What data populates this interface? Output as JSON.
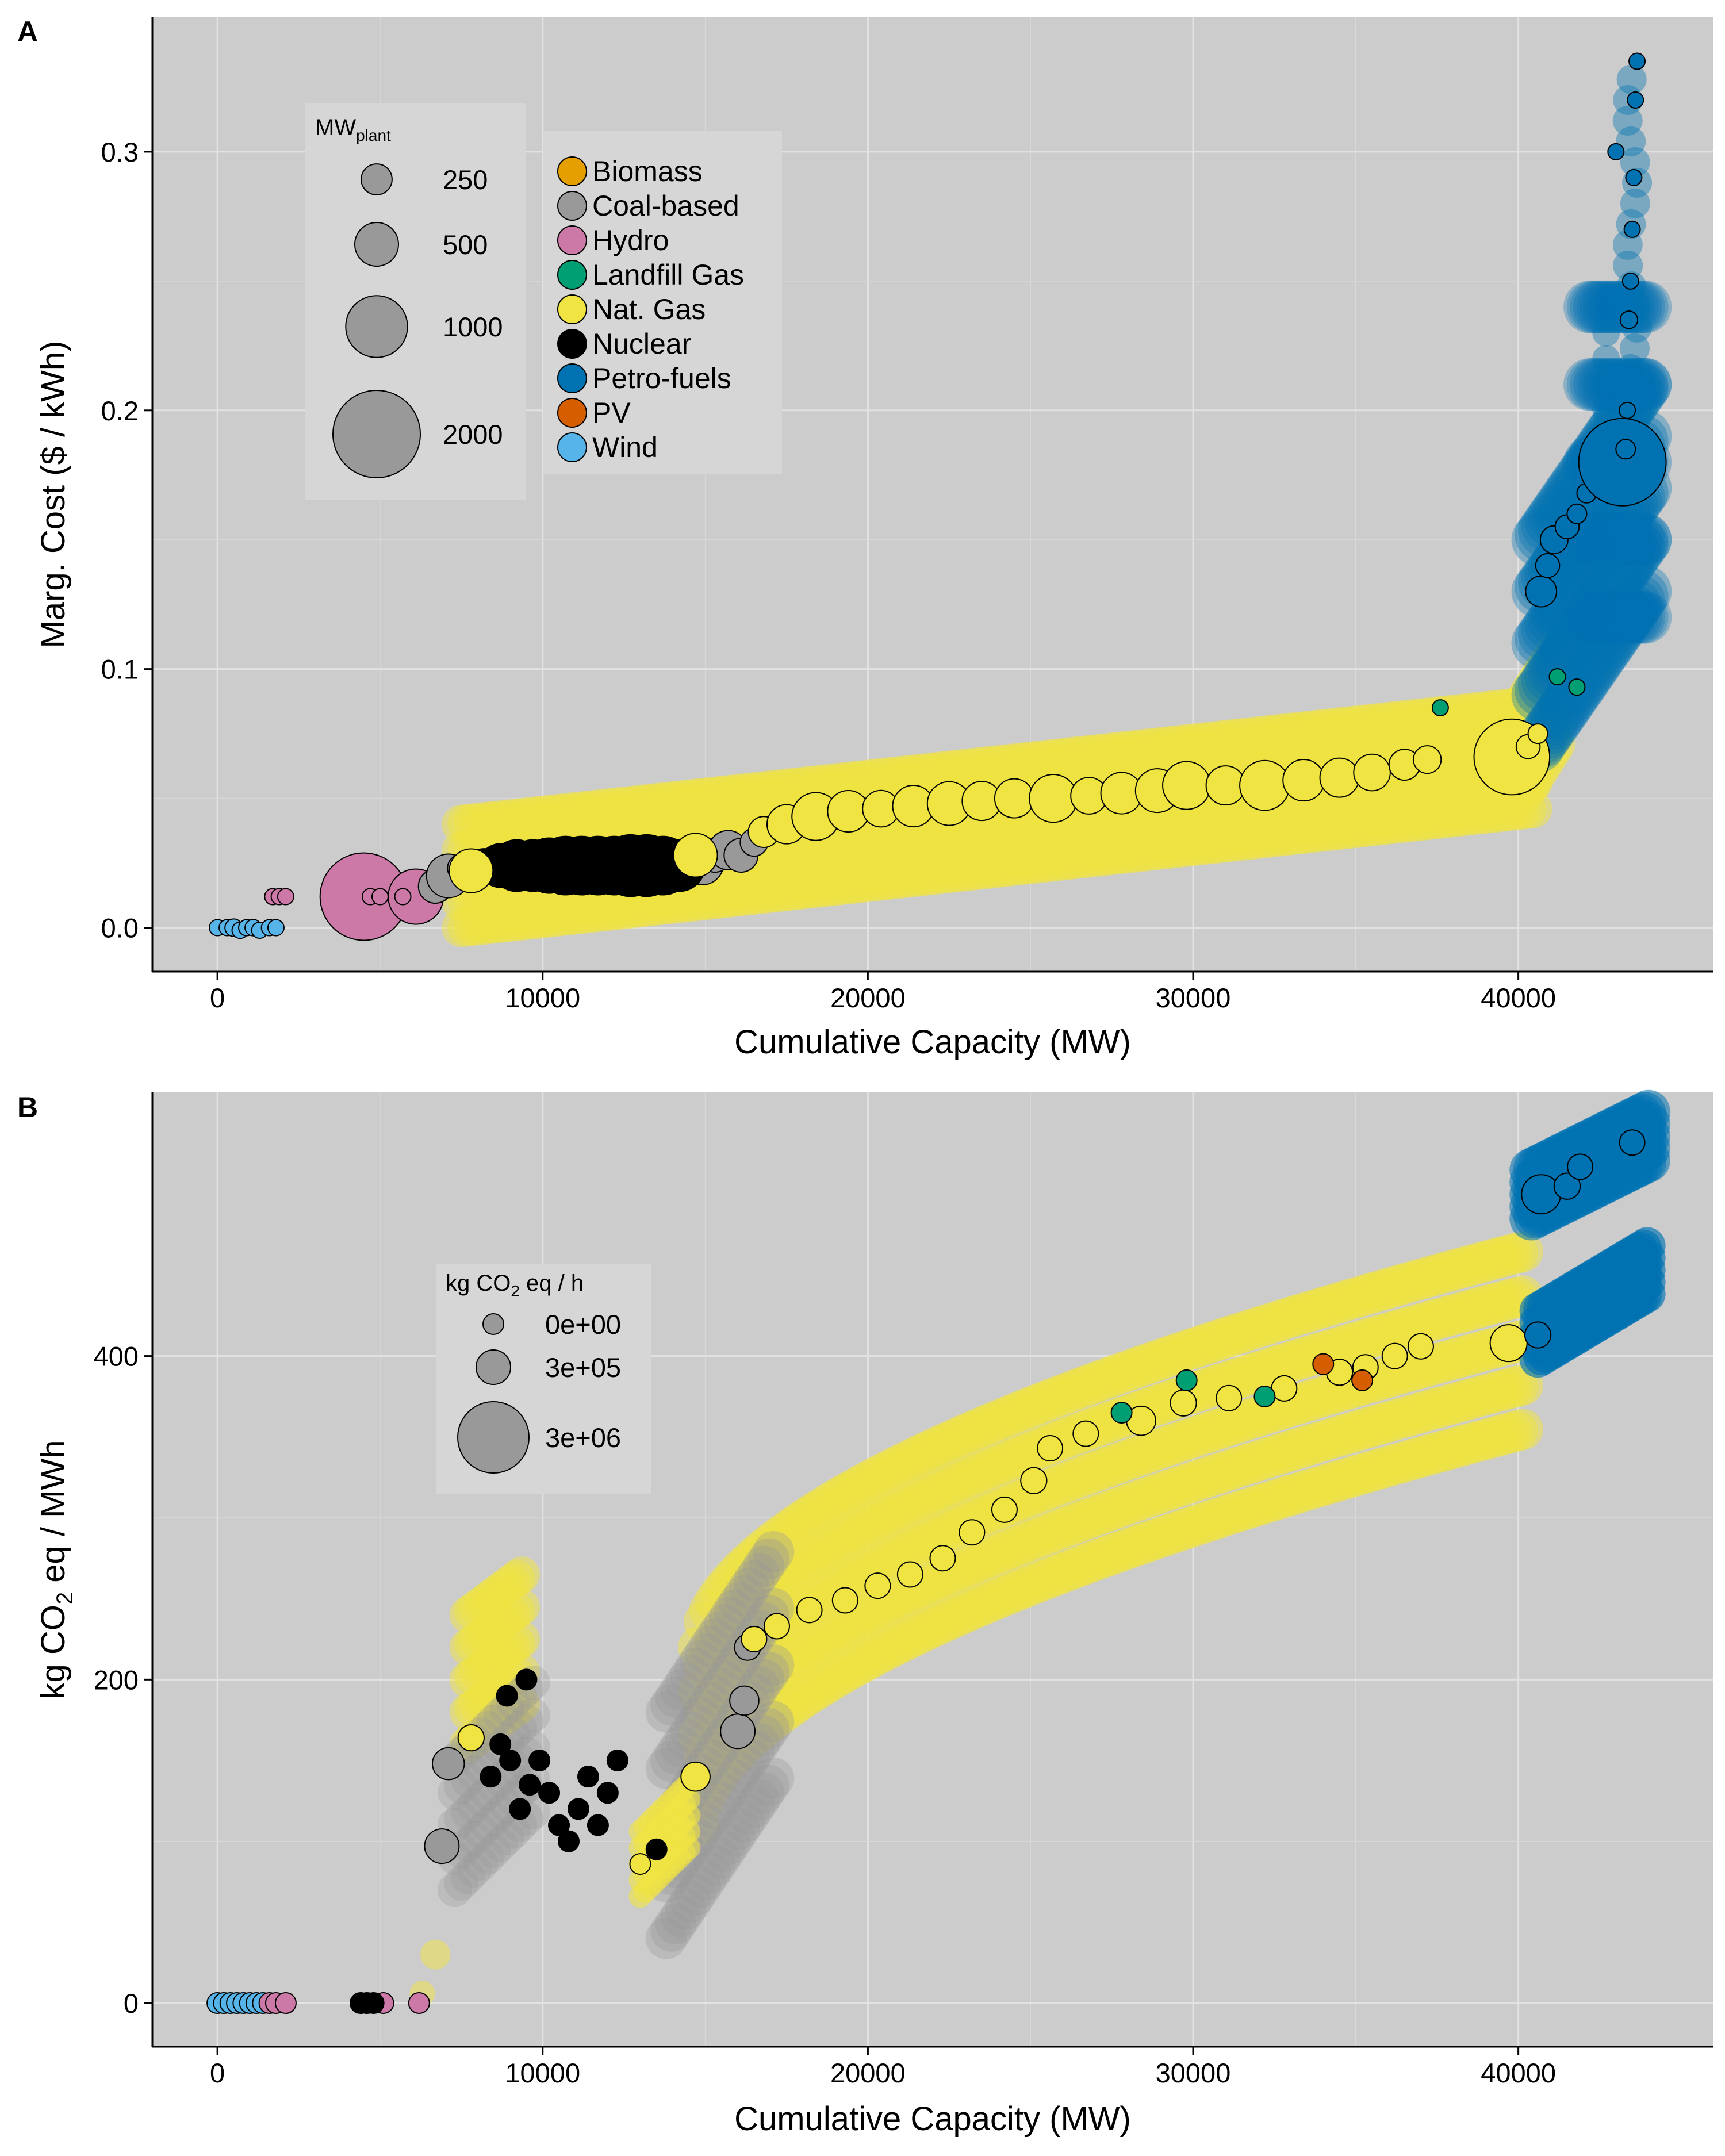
{
  "panels": [
    {
      "tag": "A"
    },
    {
      "tag": "B"
    }
  ],
  "colors": {
    "panel_bg": "#cccccc",
    "grid": "#e2e2e2",
    "Biomass": "#E69F00",
    "Coal-based": "#999999",
    "Hydro": "#CC79A7",
    "Landfill Gas": "#009E73",
    "Nat. Gas": "#F0E442",
    "Nuclear": "#000000",
    "Petro-fuels": "#0072B2",
    "PV": "#D55E00",
    "Wind": "#56B4E9"
  },
  "chart_data": [
    {
      "type": "scatter",
      "panel": "A",
      "xlabel": "Cumulative Capacity (MW)",
      "ylabel": "Marg. Cost ($ / kWh)",
      "xlim": [
        -2000,
        46000
      ],
      "ylim": [
        -0.017,
        0.352
      ],
      "x_ticks": [
        0,
        10000,
        20000,
        30000,
        40000
      ],
      "x_tick_labels": [
        "0",
        "10000",
        "20000",
        "30000",
        "40000"
      ],
      "y_ticks": [
        0.0,
        0.1,
        0.2,
        0.3
      ],
      "y_tick_labels": [
        "0.0",
        "0.1",
        "0.2",
        "0.3"
      ],
      "grid": true,
      "legend_fuel": {
        "placement": "upper-left",
        "entries": [
          "Biomass",
          "Coal-based",
          "Hydro",
          "Landfill Gas",
          "Nat. Gas",
          "Nuclear",
          "Petro-fuels",
          "PV",
          "Wind"
        ]
      },
      "legend_size": {
        "placement": "upper-left",
        "title_main": "MW",
        "title_sub": "plant",
        "entries": [
          {
            "label": "250",
            "value": 250
          },
          {
            "label": "500",
            "value": 500
          },
          {
            "label": "1000",
            "value": 1000
          },
          {
            "label": "2000",
            "value": 2000
          }
        ]
      },
      "series": [
        {
          "name": "Wind",
          "points": [
            [
              0,
              0.0,
              40
            ],
            [
              300,
              0.0,
              60
            ],
            [
              500,
              0.0,
              80
            ],
            [
              700,
              -0.001,
              70
            ],
            [
              900,
              0.0,
              60
            ],
            [
              1100,
              0.0,
              70
            ],
            [
              1300,
              -0.001,
              50
            ],
            [
              1600,
              0.0,
              50
            ],
            [
              1800,
              0.0,
              60
            ]
          ]
        },
        {
          "name": "Hydro",
          "points": [
            [
              1700,
              0.012,
              30
            ],
            [
              1900,
              0.012,
              30
            ],
            [
              2100,
              0.012,
              40
            ],
            [
              4300,
              0.012,
              20
            ],
            [
              4500,
              0.012,
              2000
            ],
            [
              4700,
              0.012,
              40
            ],
            [
              5000,
              0.012,
              30
            ],
            [
              6100,
              0.012,
              800
            ],
            [
              5700,
              0.012,
              30
            ]
          ]
        },
        {
          "name": "Coal-based",
          "points": [
            [
              6700,
              0.016,
              300
            ],
            [
              7100,
              0.02,
              500
            ],
            [
              7500,
              0.023,
              200
            ],
            [
              14900,
              0.025,
              500
            ],
            [
              15300,
              0.028,
              300
            ],
            [
              15700,
              0.03,
              400
            ],
            [
              16100,
              0.028,
              300
            ],
            [
              16500,
              0.033,
              200
            ]
          ]
        },
        {
          "name": "Nuclear",
          "points": [
            [
              8200,
              0.024,
              300
            ],
            [
              8700,
              0.024,
              500
            ],
            [
              9200,
              0.024,
              700
            ],
            [
              9700,
              0.024,
              700
            ],
            [
              10200,
              0.024,
              800
            ],
            [
              10700,
              0.024,
              900
            ],
            [
              11200,
              0.024,
              900
            ],
            [
              11700,
              0.024,
              900
            ],
            [
              12200,
              0.024,
              900
            ],
            [
              12700,
              0.024,
              1000
            ],
            [
              13200,
              0.024,
              1000
            ],
            [
              13700,
              0.024,
              900
            ],
            [
              14200,
              0.024,
              700
            ]
          ]
        },
        {
          "name": "Nat. Gas",
          "points": [
            [
              7800,
              0.022,
              500
            ],
            [
              14700,
              0.028,
              500
            ],
            [
              16800,
              0.037,
              250
            ],
            [
              17500,
              0.04,
              400
            ],
            [
              18400,
              0.043,
              600
            ],
            [
              19400,
              0.045,
              450
            ],
            [
              20400,
              0.046,
              350
            ],
            [
              21400,
              0.047,
              450
            ],
            [
              22500,
              0.048,
              500
            ],
            [
              23500,
              0.049,
              400
            ],
            [
              24500,
              0.05,
              400
            ],
            [
              25700,
              0.05,
              600
            ],
            [
              26800,
              0.051,
              350
            ],
            [
              27800,
              0.052,
              450
            ],
            [
              28900,
              0.053,
              500
            ],
            [
              29800,
              0.055,
              600
            ],
            [
              31000,
              0.055,
              400
            ],
            [
              32200,
              0.055,
              650
            ],
            [
              33400,
              0.057,
              450
            ],
            [
              34500,
              0.058,
              400
            ],
            [
              35500,
              0.06,
              350
            ],
            [
              36500,
              0.063,
              250
            ],
            [
              37200,
              0.065,
              200
            ],
            [
              39800,
              0.066,
              1500
            ],
            [
              40300,
              0.07,
              150
            ],
            [
              40600,
              0.075,
              100
            ]
          ]
        },
        {
          "name": "Landfill Gas",
          "points": [
            [
              37600,
              0.085,
              40
            ],
            [
              41200,
              0.097,
              40
            ],
            [
              41800,
              0.093,
              40
            ]
          ]
        },
        {
          "name": "Petro-fuels",
          "points": [
            [
              40700,
              0.13,
              250
            ],
            [
              40900,
              0.14,
              150
            ],
            [
              41100,
              0.15,
              200
            ],
            [
              41500,
              0.155,
              150
            ],
            [
              41800,
              0.16,
              100
            ],
            [
              42100,
              0.168,
              100
            ],
            [
              43200,
              0.18,
              2000
            ],
            [
              43300,
              0.185,
              100
            ],
            [
              43350,
              0.2,
              50
            ],
            [
              43400,
              0.235,
              80
            ],
            [
              43450,
              0.25,
              40
            ],
            [
              43500,
              0.27,
              60
            ],
            [
              43550,
              0.29,
              30
            ],
            [
              43600,
              0.32,
              30
            ],
            [
              43650,
              0.335,
              30
            ],
            [
              43000,
              0.3,
              20
            ]
          ]
        },
        {
          "name": "PV",
          "points": []
        },
        {
          "name": "Biomass",
          "points": []
        }
      ]
    },
    {
      "type": "scatter",
      "panel": "B",
      "xlabel": "Cumulative Capacity (MW)",
      "ylabel_pre": "kg CO",
      "ylabel_sub": "2",
      "ylabel_post": " eq / MWh",
      "xlim": [
        -2000,
        46000
      ],
      "ylim": [
        -27,
        563
      ],
      "x_ticks": [
        0,
        10000,
        20000,
        30000,
        40000
      ],
      "x_tick_labels": [
        "0",
        "10000",
        "20000",
        "30000",
        "40000"
      ],
      "y_ticks": [
        0,
        200,
        400
      ],
      "y_tick_labels": [
        "0",
        "200",
        "400"
      ],
      "grid": true,
      "legend_size": {
        "placement": "upper-left",
        "title_pre": "kg CO",
        "title_sub": "2",
        "title_post": " eq / h",
        "entries": [
          {
            "label": "0e+00",
            "value": 0
          },
          {
            "label": "3e+05",
            "value": 300000
          },
          {
            "label": "3e+06",
            "value": 3000000
          }
        ]
      },
      "series": [
        {
          "name": "Wind",
          "points": [
            [
              0,
              0,
              30
            ],
            [
              200,
              0,
              30
            ],
            [
              400,
              0,
              30
            ],
            [
              600,
              0,
              30
            ],
            [
              800,
              0,
              30
            ],
            [
              1000,
              0,
              30
            ],
            [
              1200,
              0,
              30
            ],
            [
              1400,
              0,
              30
            ]
          ]
        },
        {
          "name": "Hydro",
          "points": [
            [
              1600,
              0,
              30
            ],
            [
              1800,
              0,
              30
            ],
            [
              2100,
              0,
              30
            ],
            [
              5100,
              0,
              30
            ],
            [
              6200,
              0,
              30
            ]
          ]
        },
        {
          "name": "Nuclear",
          "points": [
            [
              4400,
              0,
              30
            ],
            [
              4600,
              0,
              30
            ],
            [
              4800,
              0,
              30
            ],
            [
              8400,
              140,
              30
            ],
            [
              8700,
              160,
              30
            ],
            [
              9000,
              150,
              30
            ],
            [
              9300,
              120,
              30
            ],
            [
              9600,
              135,
              30
            ],
            [
              9900,
              150,
              30
            ],
            [
              10200,
              130,
              30
            ],
            [
              10500,
              110,
              30
            ],
            [
              10800,
              100,
              30
            ],
            [
              11100,
              120,
              30
            ],
            [
              11400,
              140,
              30
            ],
            [
              11700,
              110,
              30
            ],
            [
              12000,
              130,
              30
            ],
            [
              12300,
              150,
              30
            ],
            [
              13500,
              95,
              30
            ],
            [
              8900,
              190,
              30
            ],
            [
              9500,
              200,
              30
            ]
          ]
        },
        {
          "name": "Coal-based",
          "points": [
            [
              6900,
              97,
              700000
            ],
            [
              7100,
              148,
              600000
            ],
            [
              16000,
              168,
              700000
            ],
            [
              16200,
              187,
              500000
            ],
            [
              16300,
              220,
              400000
            ]
          ]
        },
        {
          "name": "Nat. Gas",
          "points": [
            [
              7800,
              164,
              400000
            ],
            [
              13000,
              86,
              30
            ],
            [
              14700,
              140,
              500000
            ],
            [
              16500,
              225,
              300000
            ],
            [
              17200,
              233,
              200000
            ],
            [
              18200,
              243,
              250000
            ],
            [
              19300,
              249,
              300000
            ],
            [
              20300,
              258,
              250000
            ],
            [
              21300,
              265,
              300000
            ],
            [
              22300,
              275,
              200000
            ],
            [
              23200,
              291,
              300000
            ],
            [
              24200,
              305,
              250000
            ],
            [
              25100,
              323,
              400000
            ],
            [
              25600,
              343,
              300000
            ],
            [
              26700,
              352,
              250000
            ],
            [
              28400,
              360,
              500000
            ],
            [
              29700,
              371,
              400000
            ],
            [
              31100,
              374,
              350000
            ],
            [
              32800,
              380,
              300000
            ],
            [
              34500,
              390,
              400000
            ],
            [
              35300,
              393,
              350000
            ],
            [
              36200,
              400,
              300000
            ],
            [
              37000,
              406,
              250000
            ],
            [
              39700,
              408,
              800000
            ]
          ]
        },
        {
          "name": "Landfill Gas",
          "points": [
            [
              27800,
              365,
              30
            ],
            [
              29800,
              385,
              30
            ],
            [
              32200,
              375,
              30
            ]
          ]
        },
        {
          "name": "PV",
          "points": [
            [
              34000,
              395,
              30
            ],
            [
              35200,
              385,
              30
            ]
          ]
        },
        {
          "name": "Petro-fuels",
          "points": [
            [
              40600,
              413,
              400000
            ],
            [
              40700,
              500,
              900000
            ],
            [
              41500,
              505,
              400000
            ],
            [
              41900,
              517,
              300000
            ],
            [
              43500,
              532,
              300000
            ]
          ]
        },
        {
          "name": "Biomass",
          "points": []
        }
      ]
    }
  ]
}
